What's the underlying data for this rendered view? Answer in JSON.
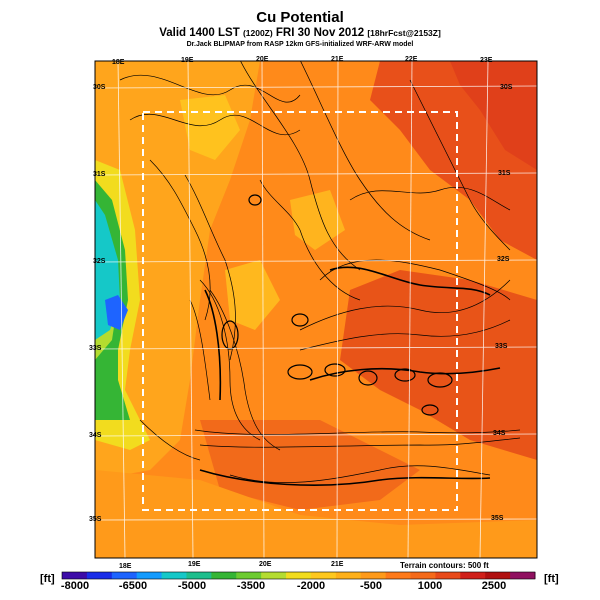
{
  "header": {
    "title": "Cu Potential",
    "subtitle_main": "Valid 1400 LST",
    "subtitle_code": "(1200Z)",
    "subtitle_date": "FRI 30 Nov 2012",
    "subtitle_fcst": "[18hrFcst@2153Z]",
    "credit": "Dr.Jack BLIPMAP from RASP 12km GFS-initialized WRF-ARW model"
  },
  "map": {
    "lon_labels_top": [
      "18E",
      "19E",
      "20E",
      "21E",
      "22E",
      "23E"
    ],
    "lon_labels_bottom": [
      "18E",
      "19E",
      "20E",
      "21E"
    ],
    "lat_labels_left": [
      "30S",
      "31S",
      "32S",
      "33S",
      "34S",
      "35S"
    ],
    "lat_labels_right": [
      "30S",
      "31S",
      "32S",
      "33S",
      "34S",
      "35S"
    ],
    "terrain_note": "Terrain contours: 500 ft",
    "colors": {
      "ocean_blue": "#1e64ff",
      "cyan": "#15c8c8",
      "green": "#35b535",
      "yellow_green": "#b4dc30",
      "yellow": "#f2dc1e",
      "orange_light": "#ffb019",
      "orange": "#ff8a1a",
      "orange_red": "#f56a1a",
      "red": "#e0401a",
      "dashed_box": "#ffffff"
    }
  },
  "colorbar": {
    "unit_left": "[ft]",
    "unit_right": "[ft]",
    "tick_labels": [
      "-8000",
      "-6500",
      "-5000",
      "-3500",
      "-2000",
      "-500",
      "1000",
      "2500"
    ],
    "colors": [
      "#3d0ca8",
      "#1a2de8",
      "#1e64ff",
      "#139bff",
      "#15c8c8",
      "#1ebe8c",
      "#35b535",
      "#6ccb30",
      "#b4dc30",
      "#f2dc1e",
      "#ffc81e",
      "#ffb019",
      "#ff9a1a",
      "#ff7a1a",
      "#f56a1a",
      "#e84a1a",
      "#d0201a",
      "#b01010",
      "#901060"
    ]
  }
}
